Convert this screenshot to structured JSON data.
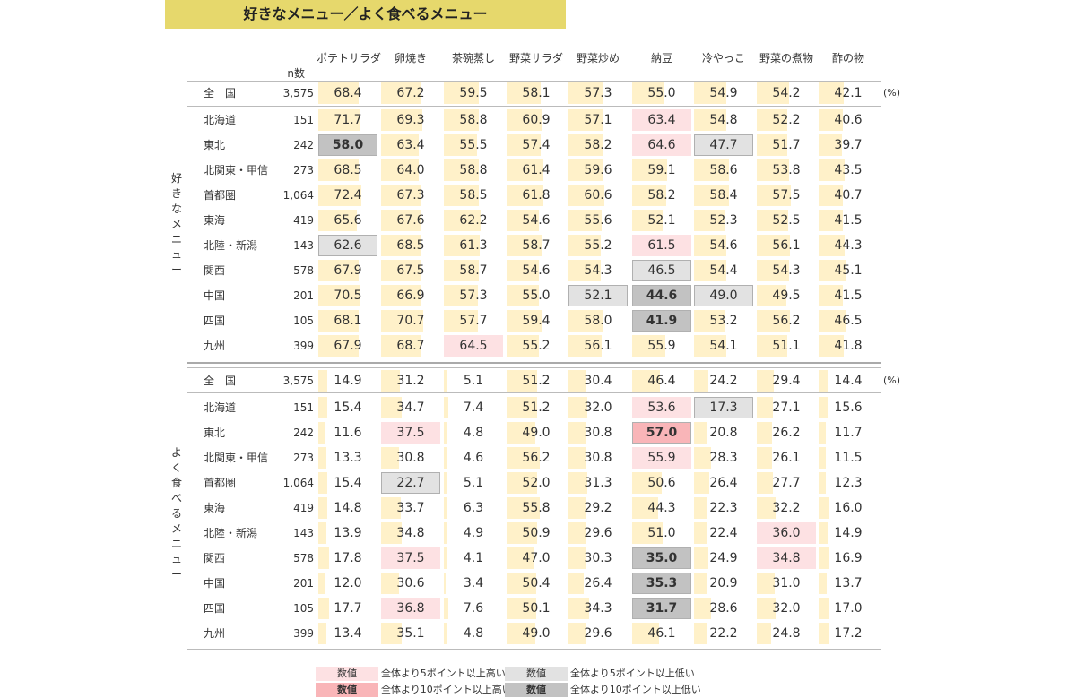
{
  "title": "好きなメニュー／よく食べるメニュー",
  "columns": [
    "ポテトサラダ",
    "卵焼き",
    "茶碗蒸し",
    "野菜サラダ",
    "野菜炒め",
    "納豆",
    "冷やっこ",
    "野菜の煮物",
    "酢の物"
  ],
  "n_label": "n数",
  "unit": "(%)",
  "section_labels": [
    "好きなメニュー",
    "よく食べるメニュー"
  ],
  "sections": [
    {
      "name": "好きなメニュー",
      "rows": [
        {
          "region": "全　国",
          "n": "3,575",
          "values": [
            "68.4",
            "67.2",
            "59.5",
            "58.1",
            "57.3",
            "55.0",
            "54.9",
            "54.2",
            "42.1"
          ],
          "marks": [
            "",
            "",
            "",
            "",
            "",
            "",
            "",
            "",
            ""
          ]
        },
        {
          "region": "北海道",
          "n": "151",
          "values": [
            "71.7",
            "69.3",
            "58.8",
            "60.9",
            "57.1",
            "63.4",
            "54.8",
            "52.2",
            "40.6"
          ],
          "marks": [
            "",
            "",
            "",
            "",
            "",
            "hi5",
            "",
            "",
            ""
          ]
        },
        {
          "region": "東北",
          "n": "242",
          "values": [
            "58.0",
            "63.4",
            "55.5",
            "57.4",
            "58.2",
            "64.6",
            "47.7",
            "51.7",
            "39.7"
          ],
          "marks": [
            "lo10",
            "",
            "",
            "",
            "",
            "hi5",
            "lo5",
            "",
            ""
          ]
        },
        {
          "region": "北関東・甲信",
          "n": "273",
          "values": [
            "68.5",
            "64.0",
            "58.8",
            "61.4",
            "59.6",
            "59.1",
            "58.6",
            "53.8",
            "43.5"
          ],
          "marks": [
            "",
            "",
            "",
            "",
            "",
            "",
            "",
            "",
            ""
          ]
        },
        {
          "region": "首都圏",
          "n": "1,064",
          "values": [
            "72.4",
            "67.3",
            "58.5",
            "61.8",
            "60.6",
            "58.2",
            "58.4",
            "57.5",
            "40.7"
          ],
          "marks": [
            "",
            "",
            "",
            "",
            "",
            "",
            "",
            "",
            ""
          ]
        },
        {
          "region": "東海",
          "n": "419",
          "values": [
            "65.6",
            "67.6",
            "62.2",
            "54.6",
            "55.6",
            "52.1",
            "52.3",
            "52.5",
            "41.5"
          ],
          "marks": [
            "",
            "",
            "",
            "",
            "",
            "",
            "",
            "",
            ""
          ]
        },
        {
          "region": "北陸・新潟",
          "n": "143",
          "values": [
            "62.6",
            "68.5",
            "61.3",
            "58.7",
            "55.2",
            "61.5",
            "54.6",
            "56.1",
            "44.3"
          ],
          "marks": [
            "lo5",
            "",
            "",
            "",
            "",
            "hi5",
            "",
            "",
            ""
          ]
        },
        {
          "region": "関西",
          "n": "578",
          "values": [
            "67.9",
            "67.5",
            "58.7",
            "54.6",
            "54.3",
            "46.5",
            "54.4",
            "54.3",
            "45.1"
          ],
          "marks": [
            "",
            "",
            "",
            "",
            "",
            "lo5",
            "",
            "",
            ""
          ]
        },
        {
          "region": "中国",
          "n": "201",
          "values": [
            "70.5",
            "66.9",
            "57.3",
            "55.0",
            "52.1",
            "44.6",
            "49.0",
            "49.5",
            "41.5"
          ],
          "marks": [
            "",
            "",
            "",
            "",
            "lo5",
            "lo10",
            "lo5",
            "",
            ""
          ]
        },
        {
          "region": "四国",
          "n": "105",
          "values": [
            "68.1",
            "70.7",
            "57.7",
            "59.4",
            "58.0",
            "41.9",
            "53.2",
            "56.2",
            "46.5"
          ],
          "marks": [
            "",
            "",
            "",
            "",
            "",
            "lo10",
            "",
            "",
            ""
          ]
        },
        {
          "region": "九州",
          "n": "399",
          "values": [
            "67.9",
            "68.7",
            "64.5",
            "55.2",
            "56.1",
            "55.9",
            "54.1",
            "51.1",
            "41.8"
          ],
          "marks": [
            "",
            "",
            "hi5",
            "",
            "",
            "",
            "",
            "",
            ""
          ]
        }
      ]
    },
    {
      "name": "よく食べるメニュー",
      "rows": [
        {
          "region": "全　国",
          "n": "3,575",
          "values": [
            "14.9",
            "31.2",
            "5.1",
            "51.2",
            "30.4",
            "46.4",
            "24.2",
            "29.4",
            "14.4"
          ],
          "marks": [
            "",
            "",
            "",
            "",
            "",
            "",
            "",
            "",
            ""
          ]
        },
        {
          "region": "北海道",
          "n": "151",
          "values": [
            "15.4",
            "34.7",
            "7.4",
            "51.2",
            "32.0",
            "53.6",
            "17.3",
            "27.1",
            "15.6"
          ],
          "marks": [
            "",
            "",
            "",
            "",
            "",
            "hi5",
            "lo5",
            "",
            ""
          ]
        },
        {
          "region": "東北",
          "n": "242",
          "values": [
            "11.6",
            "37.5",
            "4.8",
            "49.0",
            "30.8",
            "57.0",
            "20.8",
            "26.2",
            "11.7"
          ],
          "marks": [
            "",
            "hi5",
            "",
            "",
            "",
            "hi10",
            "",
            "",
            ""
          ]
        },
        {
          "region": "北関東・甲信",
          "n": "273",
          "values": [
            "13.3",
            "30.8",
            "4.6",
            "56.2",
            "30.8",
            "55.9",
            "28.3",
            "26.1",
            "11.5"
          ],
          "marks": [
            "",
            "",
            "",
            "",
            "",
            "hi5",
            "",
            "",
            ""
          ]
        },
        {
          "region": "首都圏",
          "n": "1,064",
          "values": [
            "15.4",
            "22.7",
            "5.1",
            "52.0",
            "31.3",
            "50.6",
            "26.4",
            "27.7",
            "12.3"
          ],
          "marks": [
            "",
            "lo5",
            "",
            "",
            "",
            "",
            "",
            "",
            ""
          ]
        },
        {
          "region": "東海",
          "n": "419",
          "values": [
            "14.8",
            "33.7",
            "6.3",
            "55.8",
            "29.2",
            "44.3",
            "22.3",
            "32.2",
            "16.0"
          ],
          "marks": [
            "",
            "",
            "",
            "",
            "",
            "",
            "",
            "",
            ""
          ]
        },
        {
          "region": "北陸・新潟",
          "n": "143",
          "values": [
            "13.9",
            "34.8",
            "4.9",
            "50.9",
            "29.6",
            "51.0",
            "22.4",
            "36.0",
            "14.9"
          ],
          "marks": [
            "",
            "",
            "",
            "",
            "",
            "",
            "",
            "hi5",
            ""
          ]
        },
        {
          "region": "関西",
          "n": "578",
          "values": [
            "17.8",
            "37.5",
            "4.1",
            "47.0",
            "30.3",
            "35.0",
            "24.9",
            "34.8",
            "16.9"
          ],
          "marks": [
            "",
            "hi5",
            "",
            "",
            "",
            "lo10",
            "",
            "hi5",
            ""
          ]
        },
        {
          "region": "中国",
          "n": "201",
          "values": [
            "12.0",
            "30.6",
            "3.4",
            "50.4",
            "26.4",
            "35.3",
            "20.9",
            "31.0",
            "13.7"
          ],
          "marks": [
            "",
            "",
            "",
            "",
            "",
            "lo10",
            "",
            "",
            ""
          ]
        },
        {
          "region": "四国",
          "n": "105",
          "values": [
            "17.7",
            "36.8",
            "7.6",
            "50.1",
            "34.3",
            "31.7",
            "28.6",
            "32.0",
            "17.0"
          ],
          "marks": [
            "",
            "hi5",
            "",
            "",
            "",
            "lo10",
            "",
            "",
            ""
          ]
        },
        {
          "region": "九州",
          "n": "399",
          "values": [
            "13.4",
            "35.1",
            "4.8",
            "49.0",
            "29.6",
            "46.1",
            "22.2",
            "24.8",
            "17.2"
          ],
          "marks": [
            "",
            "",
            "",
            "",
            "",
            "",
            "",
            "",
            ""
          ]
        }
      ]
    }
  ],
  "legend": {
    "sample": "数値",
    "hi5": "全体より5ポイント以上高い",
    "hi10": "全体より10ポイント以上高い",
    "lo5": "全体より5ポイント以上低い",
    "lo10": "全体より10ポイント以上低い"
  },
  "colors": {
    "title_bg": "#e6d86c",
    "bar": "#fff1c9",
    "hi5": "#fde1e3",
    "hi10": "#f9b5b8",
    "lo5": "#e2e2e2",
    "lo10": "#c2c2c2"
  }
}
